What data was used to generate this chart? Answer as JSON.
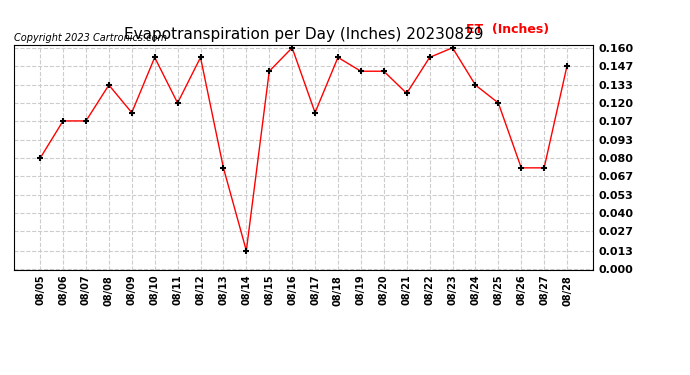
{
  "title": "Evapotranspiration per Day (Inches) 20230829",
  "copyright_text": "Copyright 2023 Cartronics.com",
  "legend_label": "ET  (Inches)",
  "dates": [
    "08/05",
    "08/06",
    "08/07",
    "08/08",
    "08/09",
    "08/10",
    "08/11",
    "08/12",
    "08/13",
    "08/14",
    "08/15",
    "08/16",
    "08/17",
    "08/18",
    "08/19",
    "08/20",
    "08/21",
    "08/22",
    "08/23",
    "08/24",
    "08/25",
    "08/26",
    "08/27",
    "08/28"
  ],
  "values": [
    0.08,
    0.107,
    0.107,
    0.133,
    0.113,
    0.153,
    0.12,
    0.153,
    0.073,
    0.013,
    0.143,
    0.16,
    0.113,
    0.153,
    0.143,
    0.143,
    0.127,
    0.153,
    0.16,
    0.133,
    0.12,
    0.073,
    0.073,
    0.147
  ],
  "line_color": "red",
  "marker_color": "black",
  "marker_style": "+",
  "marker_size": 5,
  "ylim": [
    -0.001,
    0.162
  ],
  "yticks": [
    0.0,
    0.013,
    0.027,
    0.04,
    0.053,
    0.067,
    0.08,
    0.093,
    0.107,
    0.12,
    0.133,
    0.147,
    0.16
  ],
  "background_color": "#ffffff",
  "plot_bg_color": "#ffffff",
  "grid_color": "#cccccc",
  "title_fontsize": 11,
  "copyright_fontsize": 7,
  "legend_fontsize": 9,
  "tick_fontsize": 7,
  "ytick_fontsize": 8
}
